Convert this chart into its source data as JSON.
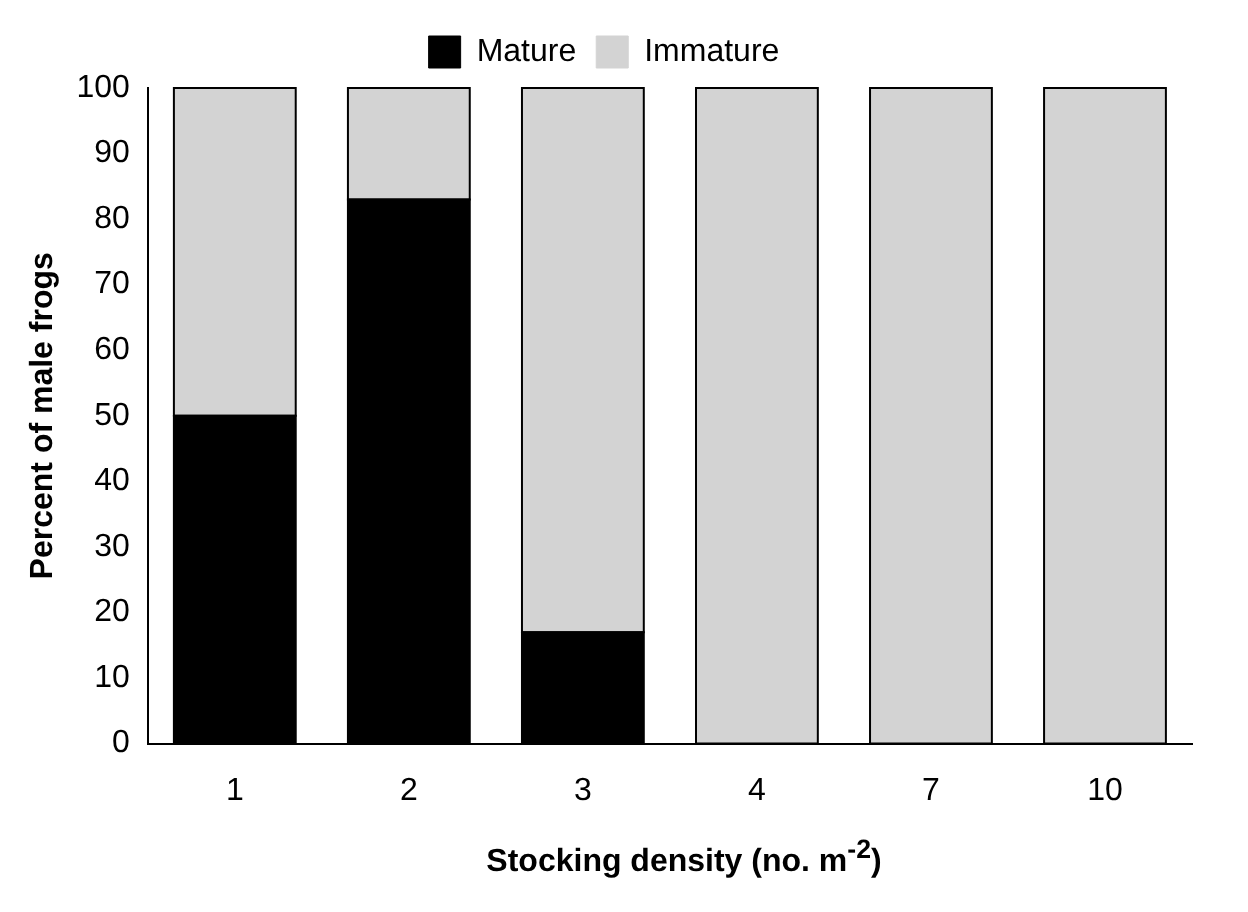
{
  "chart_data": {
    "type": "bar",
    "stacked": true,
    "xlabel": "Stocking density (no. m$^{-2}$)",
    "ylabel": "Percent of male frogs",
    "categories": [
      "1",
      "2",
      "3",
      "4",
      "7",
      "10"
    ],
    "series": [
      {
        "name": "Mature",
        "color": "#000000",
        "values": [
          50,
          83,
          17,
          0,
          0,
          0
        ]
      },
      {
        "name": "Immature",
        "color": "#d3d3d3",
        "values": [
          50,
          17,
          83,
          100,
          100,
          100
        ]
      }
    ],
    "ylim": [
      0,
      100
    ],
    "yticks": [
      0,
      10,
      20,
      30,
      40,
      50,
      60,
      70,
      80,
      90,
      100
    ],
    "grid": false,
    "legend": "top"
  }
}
